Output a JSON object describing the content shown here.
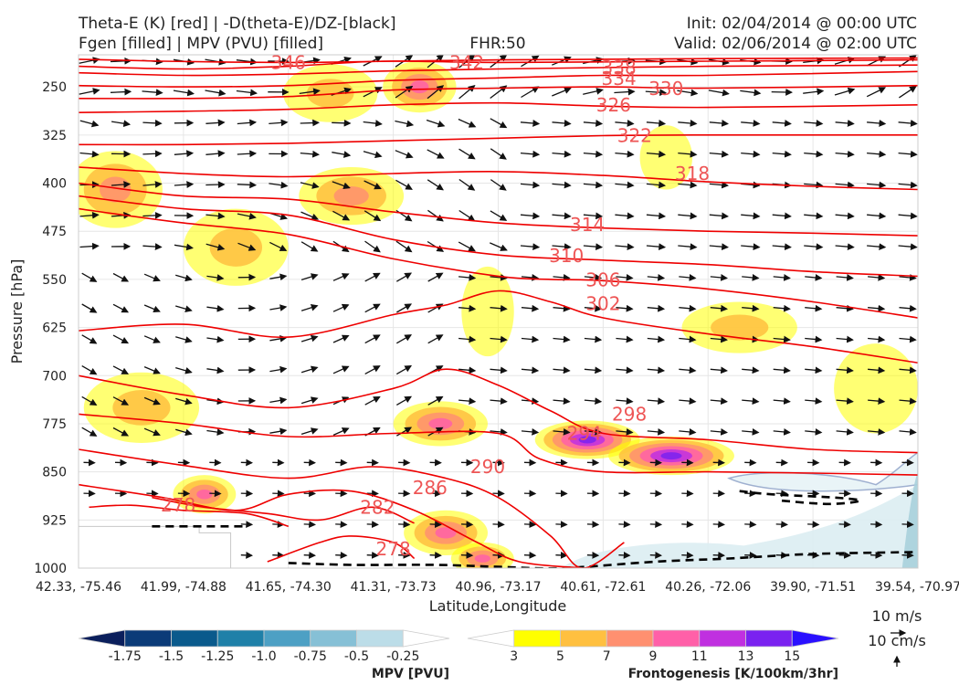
{
  "title": {
    "left_line1": "Theta-E (K) [red] | -D(theta-E)/DZ-[black]",
    "left_line2": "Fgen [filled] | MPV (PVU) [filled]",
    "center": "FHR:50",
    "right_line1": "Init: 02/04/2014 @ 00:00 UTC",
    "right_line2": "Valid: 02/06/2014 @ 02:00 UTC"
  },
  "chart_data": {
    "type": "cross-section",
    "ylabel": "Pressure [hPa]",
    "xlabel": "Latitude,Longitude",
    "y_ticks": [
      "250",
      "325",
      "400",
      "475",
      "550",
      "625",
      "700",
      "775",
      "850",
      "925",
      "1000"
    ],
    "y_values": [
      250,
      325,
      400,
      475,
      550,
      625,
      700,
      775,
      850,
      925,
      1000
    ],
    "ylim": [
      1000,
      200
    ],
    "x_ticks": [
      "42.33, -75.46",
      "41.99, -74.88",
      "41.65, -74.30",
      "41.31, -73.73",
      "40.96, -73.17",
      "40.61, -72.61",
      "40.26, -72.06",
      "39.90, -71.51",
      "39.54, -70.97"
    ],
    "grid": true,
    "theta_e_contours": [
      {
        "value": 346,
        "label": "346",
        "x": [
          0,
          0.8,
          2,
          3,
          4,
          6,
          8
        ],
        "p": [
          207,
          210,
          212,
          210,
          208,
          206,
          205
        ]
      },
      {
        "value": 342,
        "label": "342",
        "x": [
          0,
          1,
          2,
          2.9,
          4,
          6,
          8
        ],
        "p": [
          218,
          222,
          218,
          210,
          212,
          210,
          208
        ]
      },
      {
        "value": 338,
        "label": "338",
        "x": [
          0,
          1,
          2,
          3,
          4,
          5,
          6,
          8
        ],
        "p": [
          228,
          232,
          230,
          225,
          222,
          220,
          218,
          216
        ]
      },
      {
        "value": 334,
        "label": "334",
        "x": [
          0,
          1,
          2,
          3,
          4,
          5,
          6,
          8
        ],
        "p": [
          248,
          250,
          248,
          240,
          236,
          232,
          232,
          226
        ]
      },
      {
        "value": 330,
        "label": "330",
        "x": [
          0,
          1,
          2,
          3,
          4,
          5,
          6,
          8
        ],
        "p": [
          268,
          268,
          265,
          255,
          252,
          250,
          252,
          248
        ]
      },
      {
        "value": 326,
        "label": "326",
        "x": [
          0,
          1,
          2,
          3,
          4,
          5,
          6,
          8
        ],
        "p": [
          290,
          288,
          285,
          278,
          275,
          280,
          282,
          278
        ]
      },
      {
        "value": 322,
        "label": "322",
        "x": [
          0,
          1,
          2,
          3,
          4,
          5,
          6,
          7,
          8
        ],
        "p": [
          340,
          340,
          338,
          334,
          330,
          326,
          325,
          325,
          325
        ]
      },
      {
        "value": 318,
        "label": "318",
        "x": [
          0,
          1,
          2,
          3,
          4,
          5,
          6,
          7,
          8
        ],
        "p": [
          375,
          385,
          390,
          385,
          382,
          388,
          398,
          405,
          410
        ]
      },
      {
        "value": 314,
        "label": "314",
        "x": [
          0,
          1,
          2,
          3,
          4,
          5,
          6,
          7,
          8
        ],
        "p": [
          400,
          420,
          425,
          445,
          462,
          470,
          475,
          478,
          482
        ]
      },
      {
        "value": 310,
        "label": "310",
        "x": [
          0,
          1,
          2,
          3,
          4,
          5,
          6,
          7,
          8
        ],
        "p": [
          420,
          440,
          450,
          488,
          512,
          520,
          527,
          538,
          545
        ]
      },
      {
        "value": 306,
        "label": "306",
        "x": [
          0,
          1,
          2,
          3,
          4,
          4.5,
          5,
          6,
          7,
          8
        ],
        "p": [
          440,
          462,
          480,
          518,
          545,
          550,
          552,
          565,
          585,
          610
        ]
      },
      {
        "value": 302,
        "label": "302",
        "x": [
          0,
          1,
          2,
          3,
          3.5,
          4,
          4.5,
          5,
          6,
          7,
          8
        ],
        "p": [
          630,
          620,
          640,
          605,
          590,
          568,
          585,
          610,
          635,
          655,
          680
        ]
      },
      {
        "value": 298,
        "label": "298",
        "x": [
          0,
          1,
          2,
          3,
          3.5,
          4,
          4.5,
          5,
          6,
          7,
          8
        ],
        "p": [
          700,
          730,
          750,
          720,
          690,
          715,
          755,
          790,
          800,
          815,
          820
        ]
      },
      {
        "value": 294,
        "label": "294",
        "x": [
          0,
          1,
          2,
          3,
          4,
          4.4,
          5,
          6,
          7,
          8
        ],
        "p": [
          760,
          775,
          795,
          790,
          790,
          830,
          850,
          850,
          852,
          855
        ]
      },
      {
        "value": 290,
        "label": "290",
        "x": [
          0,
          1,
          2,
          2.8,
          3.5,
          4,
          4.5,
          4.8,
          5.2
        ],
        "p": [
          815,
          840,
          860,
          842,
          860,
          890,
          950,
          1000,
          960
        ]
      },
      {
        "value": 286,
        "label": "286",
        "x": [
          0,
          0.8,
          1.5,
          2,
          2.6,
          3.2,
          3.8,
          4.2,
          4.8
        ],
        "p": [
          870,
          890,
          910,
          885,
          880,
          910,
          960,
          990,
          1000
        ]
      },
      {
        "value": 282,
        "label": "282",
        "x": [
          0.7,
          1.2,
          1.8,
          2.3,
          2.8,
          3.2
        ],
        "p": [
          890,
          905,
          915,
          925,
          905,
          930
        ]
      },
      {
        "value": 278,
        "label": "278",
        "x": [
          0.1,
          0.5,
          1.0,
          1.6,
          2.0
        ],
        "p": [
          905,
          902,
          910,
          915,
          935
        ]
      },
      {
        "value": 278,
        "label": "278",
        "x": [
          1.8,
          2.3,
          2.6,
          3.0,
          3.2
        ],
        "p": [
          990,
          960,
          950,
          960,
          985
        ]
      }
    ],
    "fgen_blobs": [
      {
        "x": 0.35,
        "p": 410,
        "dx": 0.45,
        "dp": 60,
        "peak": 7
      },
      {
        "x": 1.5,
        "p": 500,
        "dx": 0.5,
        "dp": 60,
        "peak": 5
      },
      {
        "x": 2.4,
        "p": 260,
        "dx": 0.45,
        "dp": 45,
        "peak": 5
      },
      {
        "x": 3.25,
        "p": 250,
        "dx": 0.35,
        "dp": 40,
        "peak": 9
      },
      {
        "x": 2.6,
        "p": 420,
        "dx": 0.5,
        "dp": 45,
        "peak": 7
      },
      {
        "x": 3.9,
        "p": 600,
        "dx": 0.25,
        "dp": 70,
        "peak": 3
      },
      {
        "x": 5.6,
        "p": 360,
        "dx": 0.25,
        "dp": 50,
        "peak": 3
      },
      {
        "x": 6.3,
        "p": 625,
        "dx": 0.55,
        "dp": 40,
        "peak": 5
      },
      {
        "x": 0.6,
        "p": 750,
        "dx": 0.55,
        "dp": 55,
        "peak": 5
      },
      {
        "x": 3.45,
        "p": 775,
        "dx": 0.45,
        "dp": 35,
        "peak": 9
      },
      {
        "x": 4.85,
        "p": 800,
        "dx": 0.5,
        "dp": 30,
        "peak": 13
      },
      {
        "x": 5.65,
        "p": 825,
        "dx": 0.6,
        "dp": 30,
        "peak": 13
      },
      {
        "x": 1.2,
        "p": 885,
        "dx": 0.3,
        "dp": 30,
        "peak": 9
      },
      {
        "x": 3.5,
        "p": 945,
        "dx": 0.4,
        "dp": 35,
        "peak": 9
      },
      {
        "x": 3.85,
        "p": 985,
        "dx": 0.3,
        "dp": 25,
        "peak": 9
      },
      {
        "x": 7.6,
        "p": 720,
        "dx": 0.4,
        "dp": 70,
        "peak": 3
      }
    ],
    "mpv_region": {
      "x_start": 4.6,
      "description": "weak negative MPV near surface east of 40.61"
    },
    "wind_key": {
      "horizontal": "10 m/s",
      "vertical": "10 cm/s"
    },
    "colorbar_mpv": {
      "label": "MPV [PVU]",
      "ticks": [
        "-1.75",
        "-1.5",
        "-1.25",
        "-1.0",
        "-0.75",
        "-0.5",
        "-0.25"
      ],
      "colors": [
        "#0b1f5c",
        "#0b3b78",
        "#0a5a8c",
        "#1f80a8",
        "#4da0c4",
        "#86c0d6",
        "#bcdde8",
        "#ffffff"
      ]
    },
    "colorbar_fgen": {
      "label": "Frontogenesis [K/100km/3hr]",
      "ticks": [
        "3",
        "5",
        "7",
        "9",
        "11",
        "13",
        "15"
      ],
      "colors": [
        "#ffffff",
        "#ffff00",
        "#ffc040",
        "#ff9070",
        "#ff60a8",
        "#c030e0",
        "#7a22f0",
        "#2a10ff"
      ]
    }
  }
}
